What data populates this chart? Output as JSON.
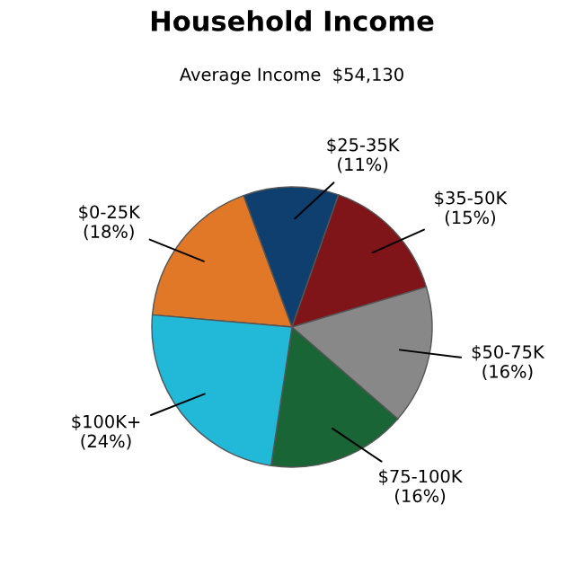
{
  "chart_data": {
    "type": "pie",
    "title": "Household Income",
    "subtitle": "Average Income  $54,130",
    "categories": [
      "$0-25K",
      "$25-35K",
      "$35-50K",
      "$50-75K",
      "$75-100K",
      "$100K+"
    ],
    "values": [
      18,
      11,
      15,
      16,
      16,
      24
    ],
    "value_labels": [
      "(18%)",
      "(11%)",
      "(15%)",
      "(16%)",
      "(16%)",
      "(24%)"
    ],
    "colors": [
      "#e07828",
      "#0e3f6e",
      "#7f1518",
      "#888888",
      "#1a6535",
      "#22b8d8"
    ],
    "legend": false
  }
}
